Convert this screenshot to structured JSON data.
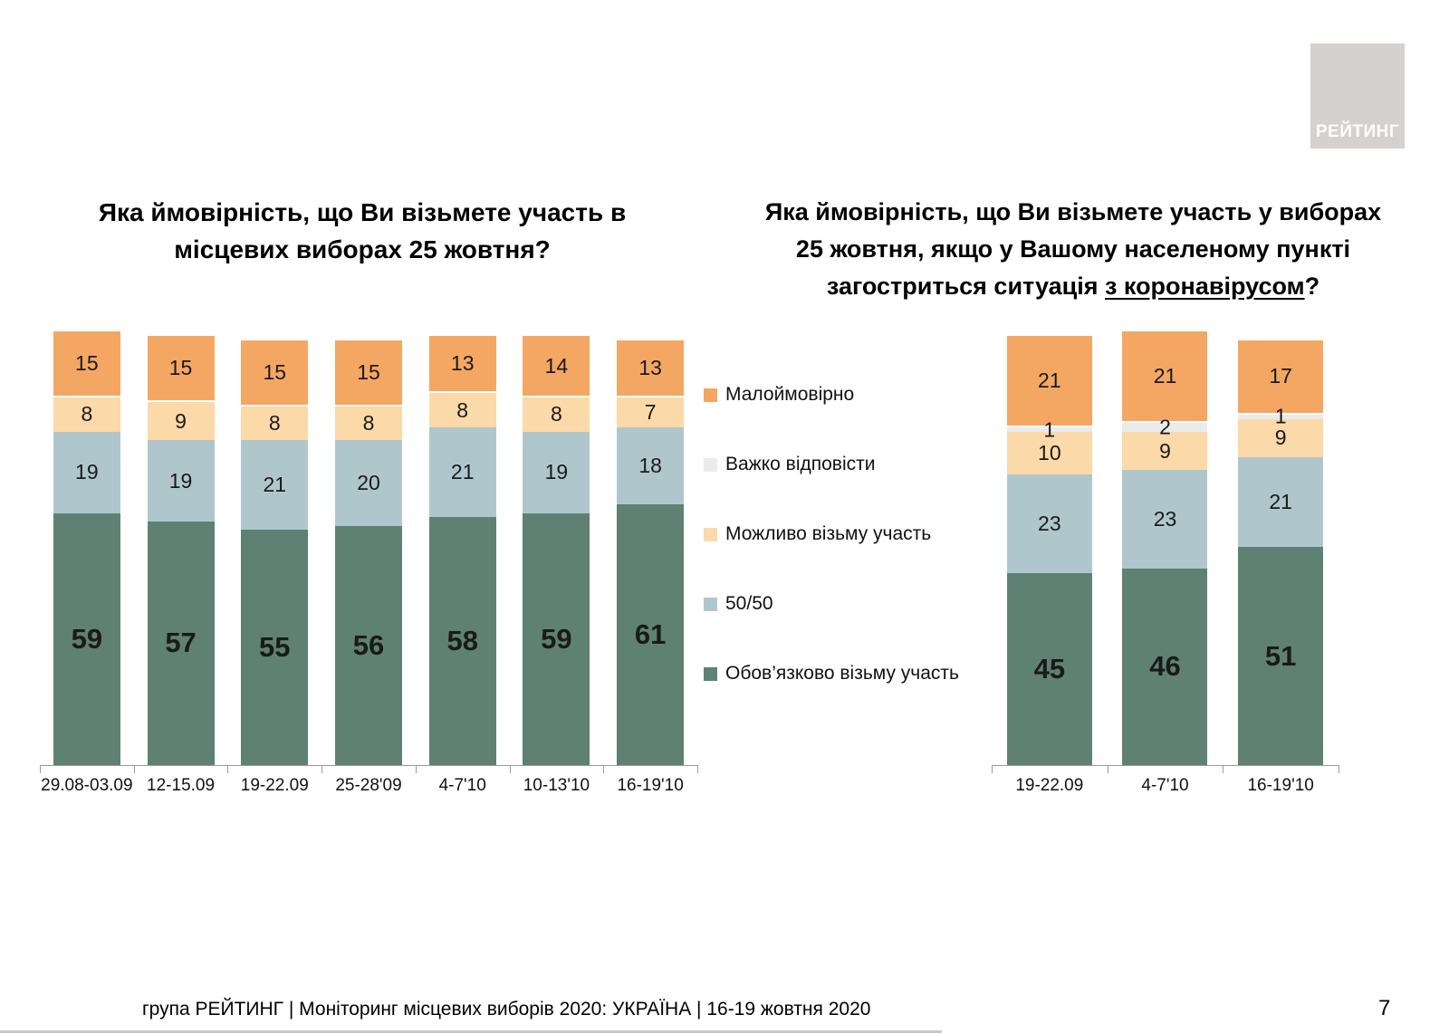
{
  "logo": {
    "text": "РЕЙТИНГ"
  },
  "colors": {
    "orange": "#F4A763",
    "gray": "#EBEBEB",
    "peach": "#FCD9A8",
    "blue": "#AFC7CC",
    "green": "#5E8173",
    "logo_bg": "#D5D1CE",
    "axis": "#9B9B9B"
  },
  "legend": {
    "items": [
      {
        "label": "Малоймовірно",
        "color_key": "orange"
      },
      {
        "label": "Важко відповісти",
        "color_key": "gray"
      },
      {
        "label": "Можливо візьму участь",
        "color_key": "peach"
      },
      {
        "label": "50/50",
        "color_key": "blue"
      },
      {
        "label": "Обов’язково візьму участь",
        "color_key": "green"
      }
    ]
  },
  "chart_data": [
    {
      "type": "bar",
      "stacked": true,
      "units": "%",
      "title_lines": [
        "Яка ймовірність, що Ви візьмете участь в",
        "місцевих виборах 25 жовтня?"
      ],
      "categories": [
        "29.08-03.09",
        "12-15.09",
        "19-22.09",
        "25-28'09",
        "4-7'10",
        "10-13'10",
        "16-19'10"
      ],
      "ylim": [
        0,
        100
      ],
      "grid": false,
      "series": [
        {
          "name": "Обов’язково візьму участь",
          "color_key": "green",
          "bold_labels": true,
          "values": [
            59,
            57,
            55,
            56,
            58,
            59,
            61
          ]
        },
        {
          "name": "50/50",
          "color_key": "blue",
          "values": [
            19,
            19,
            21,
            20,
            21,
            19,
            18
          ]
        },
        {
          "name": "Можливо візьму участь",
          "color_key": "peach",
          "values": [
            8,
            9,
            8,
            8,
            8,
            8,
            7
          ]
        },
        {
          "name": "Малоймовірно",
          "color_key": "orange",
          "values": [
            15,
            15,
            15,
            15,
            13,
            14,
            13
          ]
        }
      ]
    },
    {
      "type": "bar",
      "stacked": true,
      "units": "%",
      "title_lines": [
        "Яка ймовірність, що Ви візьмете участь у виборах",
        "25 жовтня, якщо у Вашому населеному пункті",
        "загостриться ситуація з коронавірусом?"
      ],
      "title_underline": "з коронавірусом",
      "categories": [
        "19-22.09",
        "4-7'10",
        "16-19'10"
      ],
      "ylim": [
        0,
        100
      ],
      "grid": false,
      "series": [
        {
          "name": "Обов’язково візьму участь",
          "color_key": "green",
          "bold_labels": true,
          "values": [
            45,
            46,
            51
          ]
        },
        {
          "name": "50/50",
          "color_key": "blue",
          "values": [
            23,
            23,
            21
          ]
        },
        {
          "name": "Можливо візьму участь",
          "color_key": "peach",
          "values": [
            10,
            9,
            9
          ]
        },
        {
          "name": "Важко відповісти",
          "color_key": "gray",
          "values": [
            1,
            2,
            1
          ]
        },
        {
          "name": "Малоймовірно",
          "color_key": "orange",
          "values": [
            21,
            21,
            17
          ]
        }
      ]
    }
  ],
  "footer": {
    "text": "група РЕЙТИНГ | Моніторинг місцевих виборів 2020: УКРАЇНА | 16-19 жовтня 2020",
    "page_number": "7"
  }
}
